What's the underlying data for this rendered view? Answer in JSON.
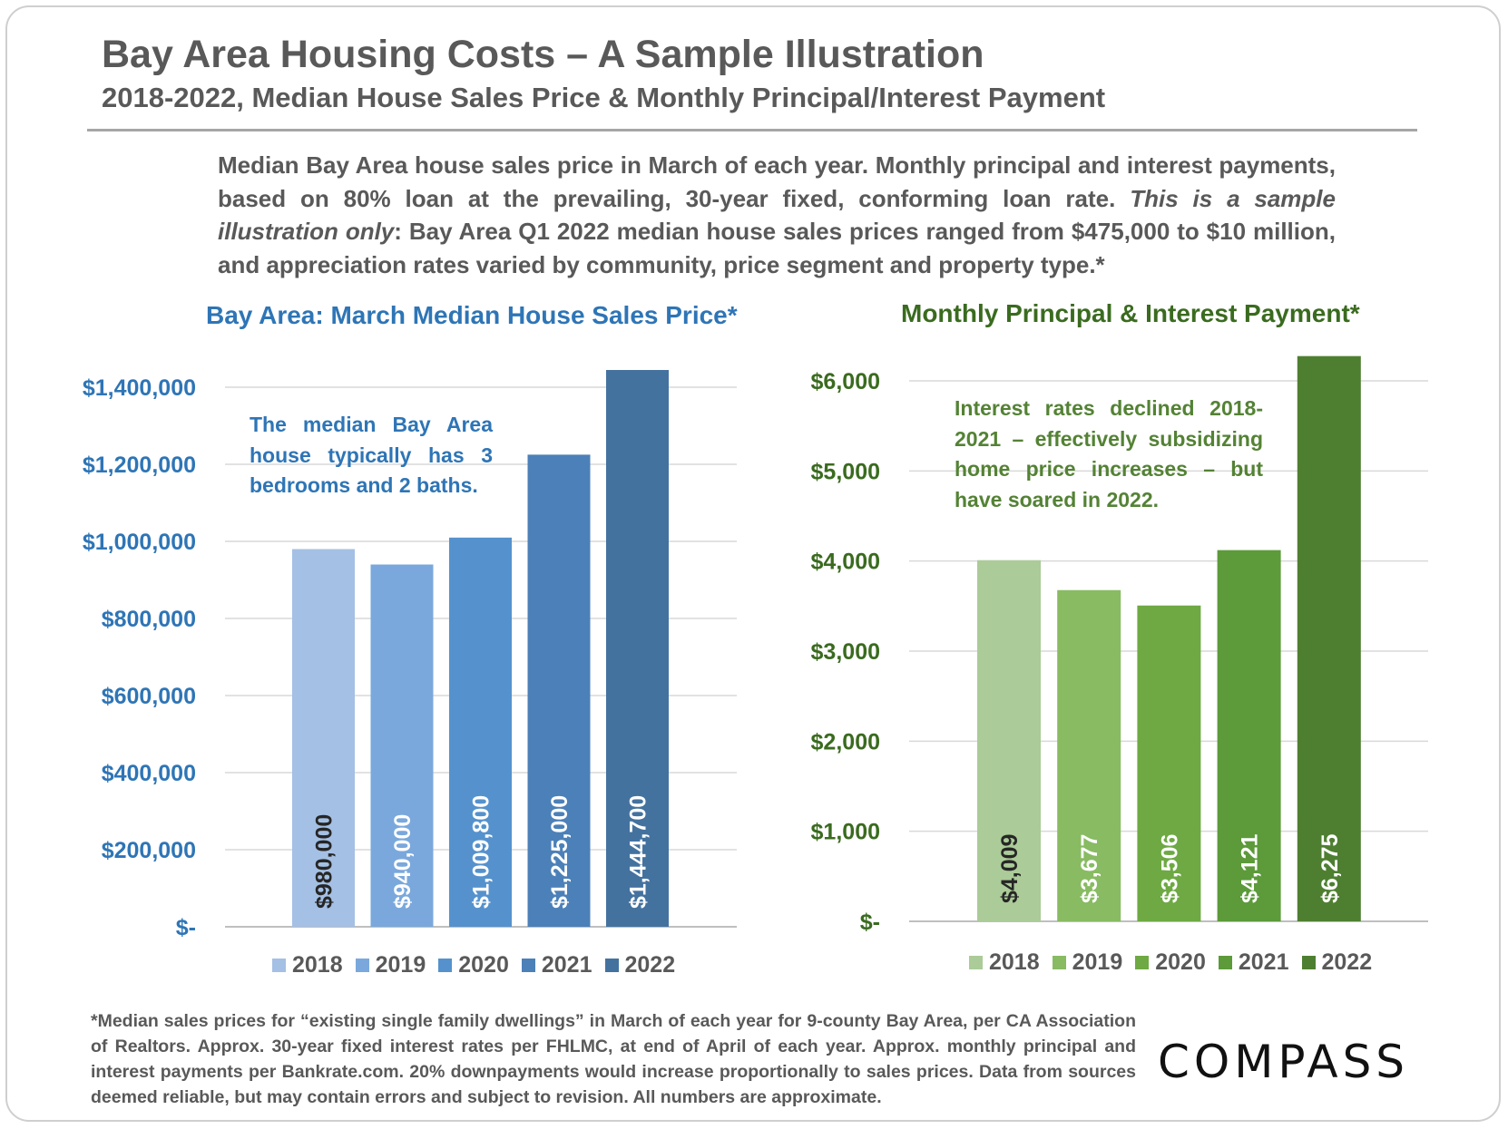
{
  "header": {
    "title": "Bay Area Housing Costs – A Sample Illustration",
    "subtitle": "2018-2022, Median House Sales Price & Monthly Principal/Interest Payment"
  },
  "intro": {
    "part1": "Median Bay Area house sales price in March of each year. Monthly principal and interest payments, based on 80% loan at the prevailing, 30-year fixed, conforming loan rate. ",
    "italic": "This is a sample illustration only",
    "part2": ": Bay Area Q1 2022 median house sales prices ranged from $475,000 to $10 million, and appreciation rates varied by community, price segment and property type.*"
  },
  "chart_data": [
    {
      "type": "bar",
      "title": "Bay Area: March Median House Sales Price*",
      "categories": [
        "2018",
        "2019",
        "2020",
        "2021",
        "2022"
      ],
      "values": [
        980000,
        940000,
        1009800,
        1225000,
        1444700
      ],
      "data_labels": [
        "$980,000",
        "$940,000",
        "$1,009,800",
        "$1,225,000",
        "$1,444,700"
      ],
      "ytick_labels": [
        "$-",
        "$200,000",
        "$400,000",
        "$600,000",
        "$800,000",
        "$1,000,000",
        "$1,200,000",
        "$1,400,000"
      ],
      "ylim": [
        0,
        1400000
      ],
      "grid": true,
      "legend": "bottom",
      "annotation": "The median Bay Area house typically has 3 bedrooms and 2 baths.",
      "colors": [
        "#a4c0e4",
        "#7aa8dc",
        "#5592cd",
        "#4c80b8",
        "#44729f"
      ],
      "label_colors": [
        "#262626",
        "#ffffff",
        "#ffffff",
        "#ffffff",
        "#ffffff"
      ]
    },
    {
      "type": "bar",
      "title": "Monthly Principal & Interest Payment*",
      "categories": [
        "2018",
        "2019",
        "2020",
        "2021",
        "2022"
      ],
      "values": [
        4009,
        3677,
        3506,
        4121,
        6275
      ],
      "data_labels": [
        "$4,009",
        "$3,677",
        "$3,506",
        "$4,121",
        "$6,275"
      ],
      "ytick_labels": [
        "$-",
        "$1,000",
        "$2,000",
        "$3,000",
        "$4,000",
        "$5,000",
        "$6,000"
      ],
      "ylim": [
        0,
        6000
      ],
      "grid": true,
      "legend": "bottom",
      "annotation": "Interest rates declined 2018-2021 – effectively subsidizing home price increases – but have soared in 2022.",
      "colors": [
        "#abcb98",
        "#88bb62",
        "#6ea943",
        "#5c9a3a",
        "#4e7f31"
      ],
      "label_colors": [
        "#262626",
        "#ffffff",
        "#ffffff",
        "#ffffff",
        "#ffffff"
      ]
    }
  ],
  "colors": {
    "blue_text": "#2e75b6",
    "green_text": "#3a6b1f",
    "gray_text": "#595959"
  },
  "footnote": "*Median sales prices for “existing single family dwellings” in March of each year for 9-county Bay Area, per CA Association of Realtors. Approx. 30-year fixed interest rates per FHLMC, at end of April of each year. Approx. monthly principal and interest payments per Bankrate.com. 20% downpayments would increase proportionally to sales prices. Data from sources deemed reliable, but may contain errors and subject to revision. All numbers are approximate.",
  "logo": "COMPASS"
}
